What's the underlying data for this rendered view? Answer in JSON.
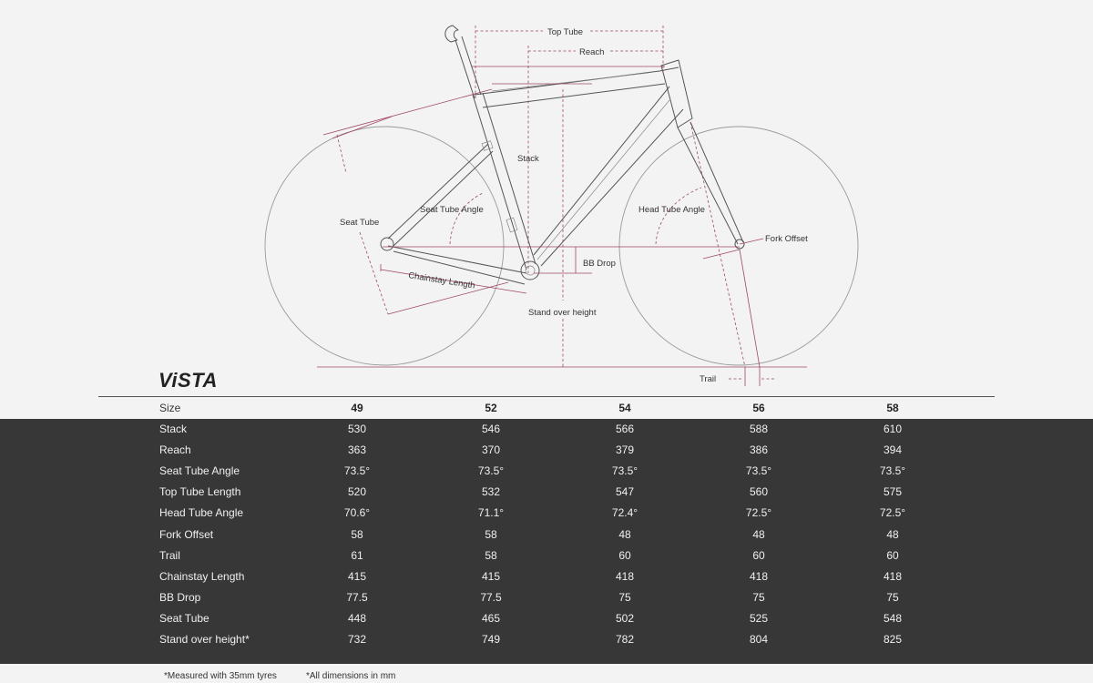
{
  "diagram": {
    "labels": {
      "top_tube": "Top Tube",
      "reach": "Reach",
      "stack": "Stack",
      "seat_tube": "Seat Tube",
      "seat_tube_angle": "Seat Tube Angle",
      "head_tube_angle": "Head Tube Angle",
      "fork_offset": "Fork Offset",
      "bb_drop": "BB Drop",
      "chainstay_length": "Chainstay Length",
      "stand_over_height": "Stand over height",
      "trail": "Trail"
    },
    "colors": {
      "dimension_line": "#a0476a",
      "frame": "#555555",
      "wheel": "#9a9a9a"
    }
  },
  "brand": {
    "logo": "ViSTA"
  },
  "table": {
    "header": {
      "label": "Size",
      "sizes": [
        "49",
        "52",
        "54",
        "56",
        "58"
      ]
    },
    "rows": [
      {
        "label": "Stack",
        "values": [
          "530",
          "546",
          "566",
          "588",
          "610"
        ]
      },
      {
        "label": "Reach",
        "values": [
          "363",
          "370",
          "379",
          "386",
          "394"
        ]
      },
      {
        "label": "Seat Tube Angle",
        "values": [
          "73.5°",
          "73.5°",
          "73.5°",
          "73.5°",
          "73.5°"
        ]
      },
      {
        "label": "Top Tube Length",
        "values": [
          "520",
          "532",
          "547",
          "560",
          "575"
        ]
      },
      {
        "label": "Head Tube Angle",
        "values": [
          "70.6°",
          "71.1°",
          "72.4°",
          "72.5°",
          "72.5°"
        ]
      },
      {
        "label": "Fork Offset",
        "values": [
          "58",
          "58",
          "48",
          "48",
          "48"
        ]
      },
      {
        "label": "Trail",
        "values": [
          "61",
          "58",
          "60",
          "60",
          "60"
        ]
      },
      {
        "label": "Chainstay Length",
        "values": [
          "415",
          "415",
          "418",
          "418",
          "418"
        ]
      },
      {
        "label": "BB Drop",
        "values": [
          "77.5",
          "77.5",
          "75",
          "75",
          "75"
        ]
      },
      {
        "label": "Seat Tube",
        "values": [
          "448",
          "465",
          "502",
          "525",
          "548"
        ]
      },
      {
        "label": "Stand over height*",
        "values": [
          "732",
          "749",
          "782",
          "804",
          "825"
        ]
      }
    ],
    "colors": {
      "body_background": "#373737",
      "body_text": "#f0f0f0"
    }
  },
  "footnotes": {
    "tyres": "*Measured with 35mm tyres",
    "units": "*All dimensions in mm"
  }
}
